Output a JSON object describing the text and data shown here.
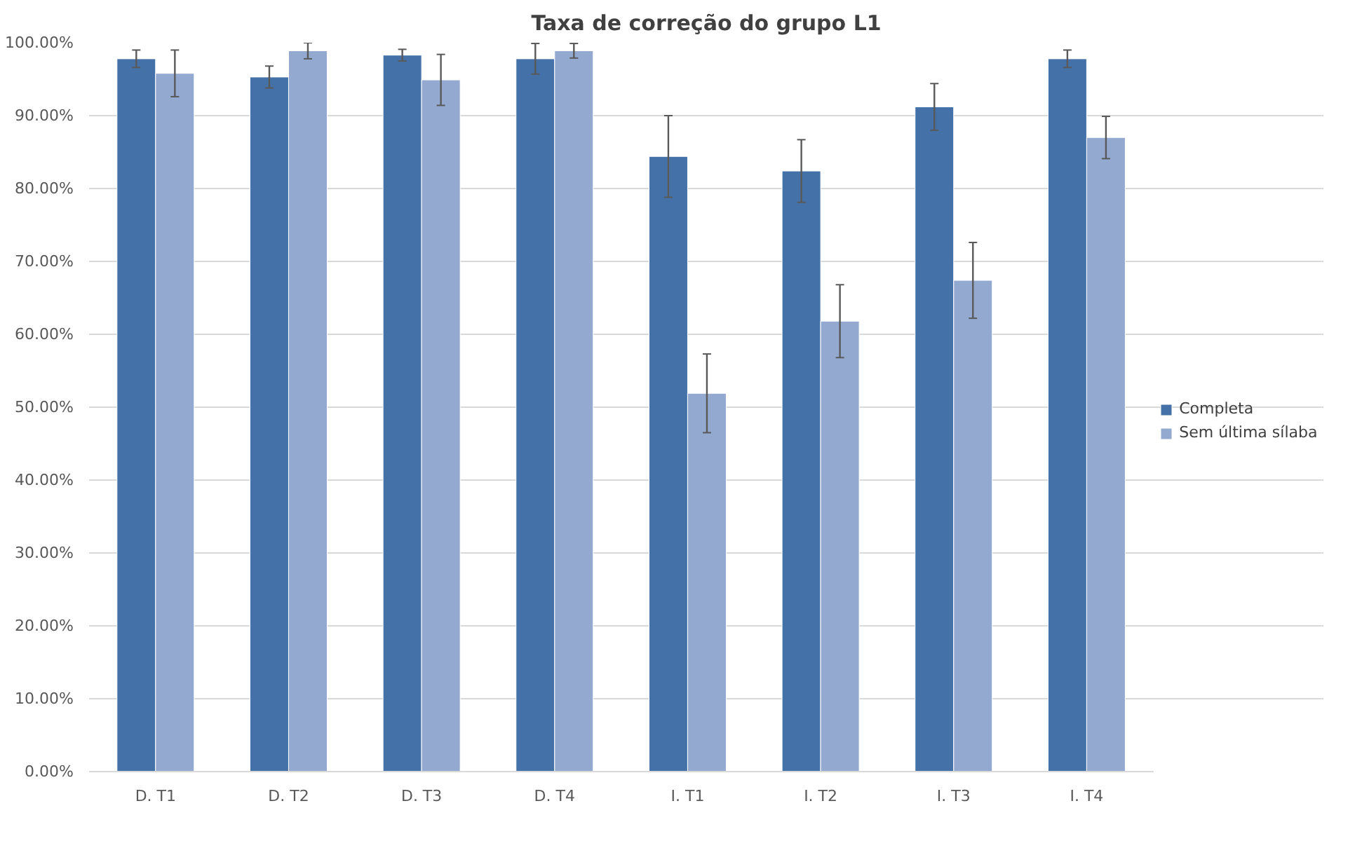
{
  "chart_data": {
    "type": "bar",
    "title": "Taxa de correção do grupo L1",
    "categories": [
      "D. T1",
      "D. T2",
      "D. T3",
      "D. T4",
      "I. T1",
      "I. T2",
      "I. T3",
      "I. T4"
    ],
    "series": [
      {
        "name": "Completa",
        "color": "#4472a8",
        "values": [
          97.8,
          95.3,
          98.3,
          97.8,
          84.4,
          82.4,
          91.2,
          97.8
        ],
        "errors": [
          1.2,
          1.5,
          0.8,
          2.1,
          5.6,
          4.3,
          3.2,
          1.2
        ]
      },
      {
        "name": "Sem última sílaba",
        "color": "#93a9d0",
        "values": [
          95.8,
          98.9,
          94.9,
          98.9,
          51.9,
          61.8,
          67.4,
          87.0
        ],
        "errors": [
          3.2,
          1.1,
          3.5,
          1.0,
          5.4,
          5.0,
          5.2,
          2.9
        ]
      }
    ],
    "ylim": [
      0,
      100
    ],
    "yticks": [
      {
        "value": 0,
        "label": "0.00%"
      },
      {
        "value": 10,
        "label": "10.00%"
      },
      {
        "value": 20,
        "label": "20.00%"
      },
      {
        "value": 30,
        "label": "30.00%"
      },
      {
        "value": 40,
        "label": "40.00%"
      },
      {
        "value": 50,
        "label": "50.00%"
      },
      {
        "value": 60,
        "label": "60.00%"
      },
      {
        "value": 70,
        "label": "70.00%"
      },
      {
        "value": 80,
        "label": "80.00%"
      },
      {
        "value": 90,
        "label": "90.00%"
      },
      {
        "value": 100,
        "label": "100.00%"
      }
    ],
    "grid": "y",
    "legend": "right"
  }
}
